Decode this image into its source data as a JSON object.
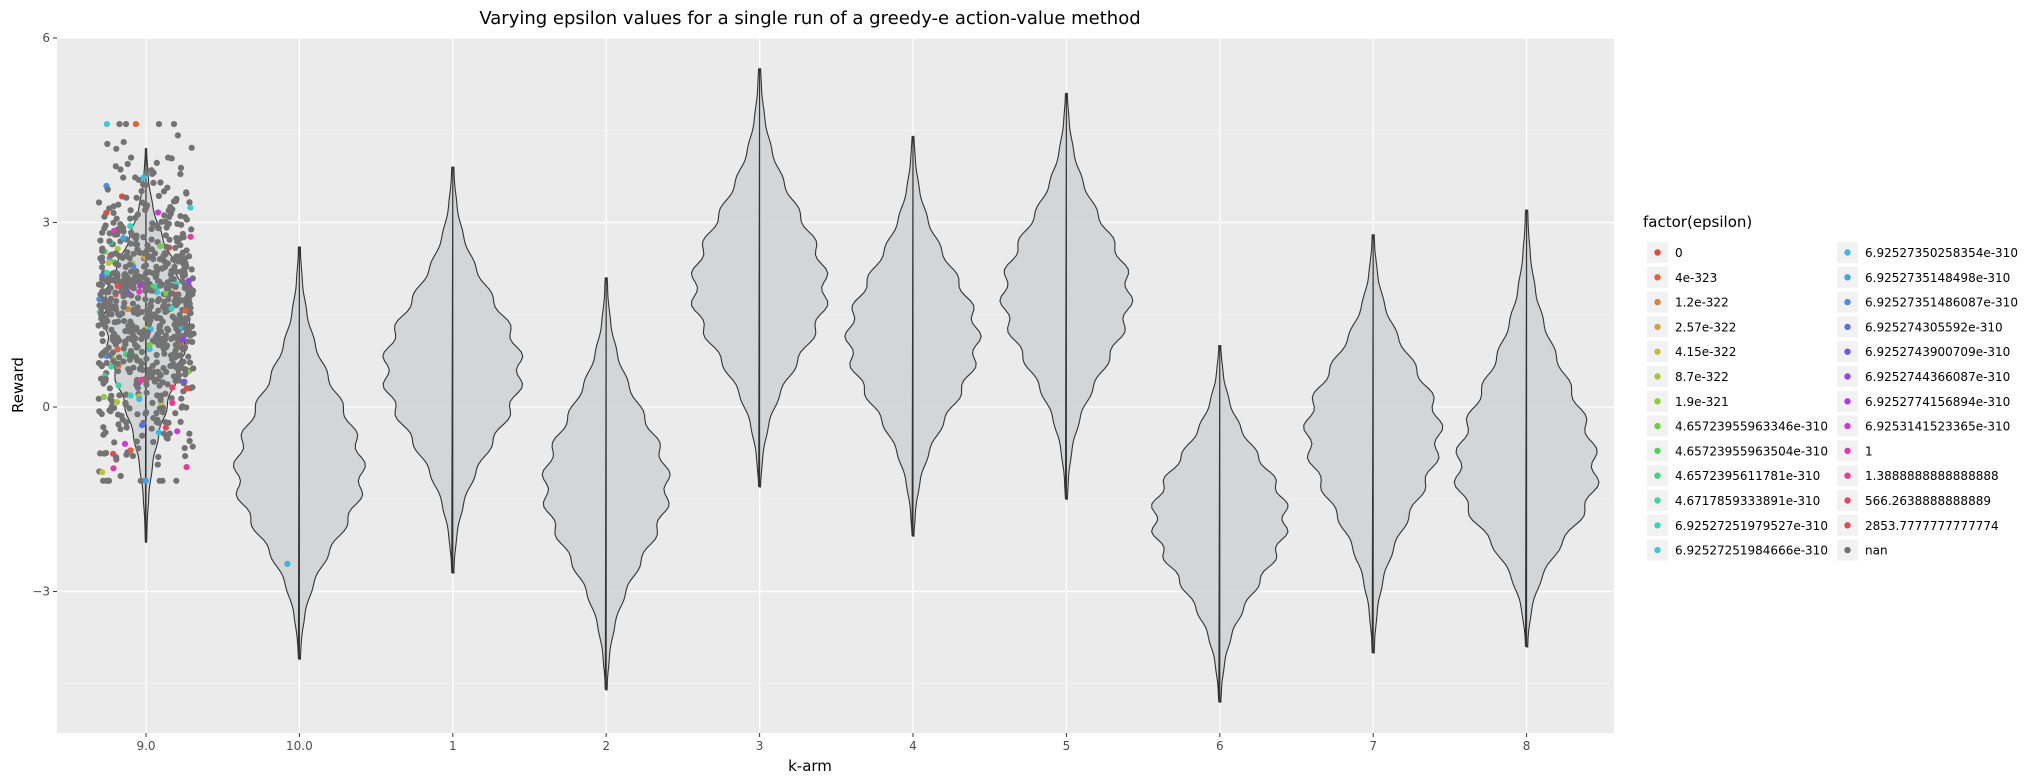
{
  "chart_data": {
    "type": "violin",
    "title": "Varying epsilon values for a single run of a greedy-e action-value method",
    "xlabel": "k-arm",
    "ylabel": "Reward",
    "categories": [
      "9.0",
      "10.0",
      "1",
      "2",
      "3",
      "4",
      "5",
      "6",
      "7",
      "8"
    ],
    "y_ticks": [
      -3,
      0,
      3,
      6
    ],
    "y_tick_labels": [
      "−3",
      "0",
      "3",
      "6"
    ],
    "ylim": [
      -5.3,
      6.0
    ],
    "grid": true,
    "violins": [
      {
        "category": "9.0",
        "min": -2.2,
        "max": 4.2,
        "mode": 1.5,
        "width": 0.54
      },
      {
        "category": "10.0",
        "min": -4.1,
        "max": 2.6,
        "mode": -1.1,
        "width": 0.82
      },
      {
        "category": "1",
        "min": -2.7,
        "max": 3.9,
        "mode": 0.6,
        "width": 0.88
      },
      {
        "category": "2",
        "min": -4.6,
        "max": 2.1,
        "mode": -1.3,
        "width": 0.8
      },
      {
        "category": "3",
        "min": -1.3,
        "max": 5.5,
        "mode": 1.9,
        "width": 0.86
      },
      {
        "category": "4",
        "min": -2.1,
        "max": 4.4,
        "mode": 1.1,
        "width": 0.84
      },
      {
        "category": "5",
        "min": -1.5,
        "max": 5.1,
        "mode": 1.8,
        "width": 0.82
      },
      {
        "category": "6",
        "min": -4.8,
        "max": 1.0,
        "mode": -1.8,
        "width": 0.86
      },
      {
        "category": "7",
        "min": -4.0,
        "max": 2.8,
        "mode": -0.4,
        "width": 0.86
      },
      {
        "category": "8",
        "min": -3.9,
        "max": 3.2,
        "mode": -1.1,
        "width": 0.9
      }
    ],
    "violin_fill": "#d0d3d4",
    "points": {
      "category": "9.0",
      "count": 760,
      "mean": 1.5,
      "sd": 1.2,
      "default_color": "#737373",
      "extra_points": [
        {
          "category": "10.0",
          "y": -2.55,
          "color": "#39b7d6"
        }
      ]
    },
    "legend": {
      "title": "factor(epsilon)",
      "placement": "right",
      "entries": [
        {
          "label": "0",
          "color": "#e5493b"
        },
        {
          "label": "4e-323",
          "color": "#e0623a"
        },
        {
          "label": "1.2e-322",
          "color": "#d9833a"
        },
        {
          "label": "2.57e-322",
          "color": "#cea53a"
        },
        {
          "label": "4.15e-322",
          "color": "#bfc03b"
        },
        {
          "label": "8.7e-322",
          "color": "#a6c63d"
        },
        {
          "label": "1.9e-321",
          "color": "#8ccb41"
        },
        {
          "label": "4.65723955963346e-310",
          "color": "#6bcf46"
        },
        {
          "label": "4.65723955963504e-310",
          "color": "#4cd35a"
        },
        {
          "label": "4.6572395611781e-310",
          "color": "#43d37e"
        },
        {
          "label": "4.6717859333891e-310",
          "color": "#3fd3a0"
        },
        {
          "label": "6.92527251979527e-310",
          "color": "#3dd1bf"
        },
        {
          "label": "6.92527251984666e-310",
          "color": "#3ccad6"
        },
        {
          "label": "6.92527350258354e-310",
          "color": "#3cbbe4"
        },
        {
          "label": "6.9252735148498e-310",
          "color": "#41a6e8"
        },
        {
          "label": "6.92527351486087e-310",
          "color": "#4b8ce8"
        },
        {
          "label": "6.925274305592e-310",
          "color": "#5a6fe6"
        },
        {
          "label": "6.9252743900709e-310",
          "color": "#7356e4"
        },
        {
          "label": "6.9252744366087e-310",
          "color": "#9148e0"
        },
        {
          "label": "6.9252774156894e-310",
          "color": "#b03fda"
        },
        {
          "label": "6.9253141523365e-310",
          "color": "#cc3cce"
        },
        {
          "label": "1",
          "color": "#e03ab6"
        },
        {
          "label": "1.3888888888888888",
          "color": "#e73c97"
        },
        {
          "label": "566.2638888888889",
          "color": "#e8416f"
        },
        {
          "label": "2853.7777777777774",
          "color": "#e54a4f"
        },
        {
          "label": "nan",
          "color": "#737373"
        }
      ]
    }
  }
}
